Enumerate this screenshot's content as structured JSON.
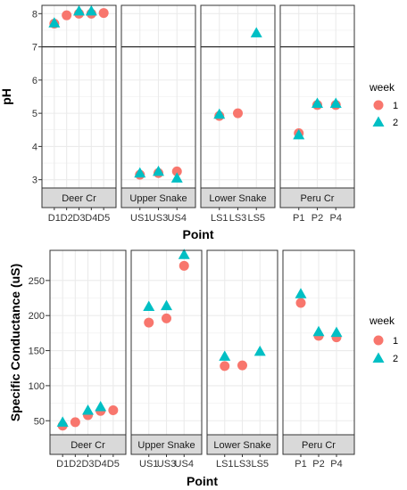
{
  "colors": {
    "week1": "#f8766d",
    "week2": "#00bfc4",
    "strip": "#d9d9d9",
    "grid": "#ebebeb",
    "frame": "#333333"
  },
  "chart_data": [
    {
      "type": "scatter",
      "ylabel": "pH",
      "xlabel": "Point",
      "ylim": [
        2.75,
        8.25
      ],
      "yticks": [
        3,
        4,
        5,
        6,
        7,
        8
      ],
      "hline": 7,
      "legend": {
        "title": "week",
        "entries": [
          "1",
          "2"
        ],
        "placement": "right"
      },
      "facets": [
        {
          "name": "Deer Cr",
          "categories": [
            "D1",
            "D2",
            "D3",
            "D4",
            "D5"
          ],
          "series": [
            {
              "name": "1",
              "values": [
                7.7,
                7.95,
                8.0,
                8.0,
                8.02
              ]
            },
            {
              "name": "2",
              "values": [
                7.72,
                null,
                8.08,
                8.08,
                null
              ]
            }
          ]
        },
        {
          "name": "Upper Snake",
          "categories": [
            "US1",
            "US3",
            "US4"
          ],
          "series": [
            {
              "name": "1",
              "values": [
                3.15,
                3.2,
                3.25
              ]
            },
            {
              "name": "2",
              "values": [
                3.2,
                3.25,
                3.05
              ]
            }
          ]
        },
        {
          "name": "Lower Snake",
          "categories": [
            "LS1",
            "LS3",
            "LS5"
          ],
          "series": [
            {
              "name": "1",
              "values": [
                4.92,
                5.0,
                null
              ]
            },
            {
              "name": "2",
              "values": [
                4.97,
                null,
                7.42
              ]
            }
          ]
        },
        {
          "name": "Peru Cr",
          "categories": [
            "P1",
            "P2",
            "P4"
          ],
          "series": [
            {
              "name": "1",
              "values": [
                4.4,
                5.25,
                5.25
              ]
            },
            {
              "name": "2",
              "values": [
                4.35,
                5.3,
                5.3
              ]
            }
          ]
        }
      ]
    },
    {
      "type": "scatter",
      "ylabel": "Specific Conductance (uS)",
      "xlabel": "Point",
      "ylim": [
        30,
        293
      ],
      "yticks": [
        50,
        100,
        150,
        200,
        250
      ],
      "legend": {
        "title": "week",
        "entries": [
          "1",
          "2"
        ],
        "placement": "right"
      },
      "facets": [
        {
          "name": "Deer Cr",
          "categories": [
            "D1",
            "D2",
            "D3",
            "D4",
            "D5"
          ],
          "series": [
            {
              "name": "1",
              "values": [
                43,
                48,
                58,
                64,
                65
              ]
            },
            {
              "name": "2",
              "values": [
                48,
                null,
                65,
                70,
                null
              ]
            }
          ]
        },
        {
          "name": "Upper Snake",
          "categories": [
            "US1",
            "US3",
            "US4"
          ],
          "series": [
            {
              "name": "1",
              "values": [
                190,
                196,
                271
              ]
            },
            {
              "name": "2",
              "values": [
                213,
                214,
                287
              ]
            }
          ]
        },
        {
          "name": "Lower Snake",
          "categories": [
            "LS1",
            "LS3",
            "LS5"
          ],
          "series": [
            {
              "name": "1",
              "values": [
                128,
                129,
                null
              ]
            },
            {
              "name": "2",
              "values": [
                142,
                null,
                149
              ]
            }
          ]
        },
        {
          "name": "Peru Cr",
          "categories": [
            "P1",
            "P2",
            "P4"
          ],
          "series": [
            {
              "name": "1",
              "values": [
                218,
                171,
                169
              ]
            },
            {
              "name": "2",
              "values": [
                231,
                177,
                176
              ]
            }
          ]
        }
      ]
    }
  ]
}
